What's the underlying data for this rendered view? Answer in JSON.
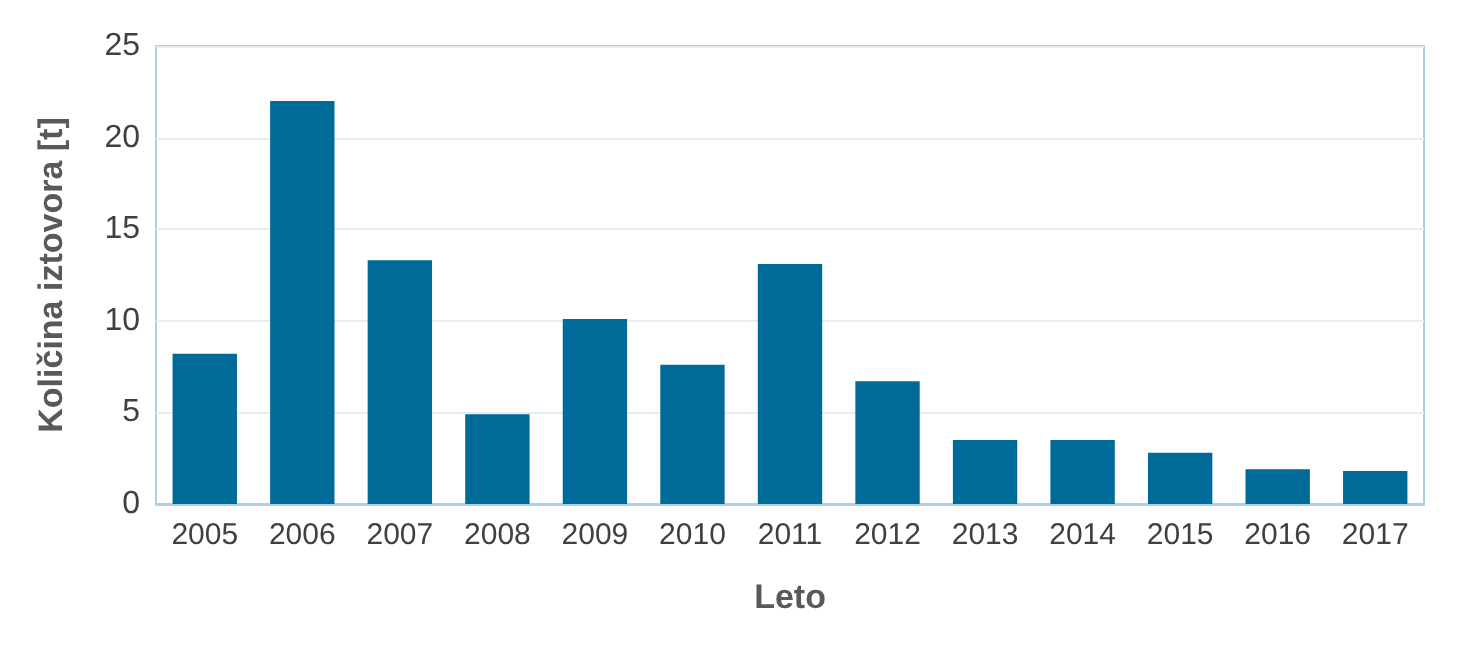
{
  "chart_data": {
    "type": "bar",
    "xlabel": "Leto",
    "ylabel": "Količina iztovora [t]",
    "categories": [
      "2005",
      "2006",
      "2007",
      "2008",
      "2009",
      "2010",
      "2011",
      "2012",
      "2013",
      "2014",
      "2015",
      "2016",
      "2017"
    ],
    "values": [
      8.2,
      22.0,
      13.3,
      4.9,
      10.1,
      7.6,
      13.1,
      6.7,
      3.5,
      3.5,
      2.8,
      1.9,
      1.8
    ],
    "color": "#006b99",
    "ylim": [
      0,
      25
    ],
    "yticks": [
      0,
      5,
      10,
      15,
      20,
      25
    ],
    "grid": "y"
  }
}
